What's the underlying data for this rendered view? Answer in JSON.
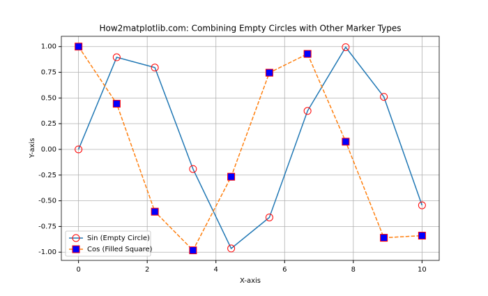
{
  "chart_data": {
    "type": "line",
    "title": "How2matplotlib.com: Combining Empty Circles with Other Marker Types",
    "xlabel": "X-axis",
    "ylabel": "Y-axis",
    "x": [
      0,
      1.111,
      2.222,
      3.333,
      4.444,
      5.556,
      6.667,
      7.778,
      8.889,
      10
    ],
    "series": [
      {
        "name": "Sin (Empty Circle)",
        "color": "#1f77b4",
        "linestyle": "solid",
        "marker": "circle",
        "marker_face": "none",
        "marker_edge": "red",
        "values": [
          0,
          0.896,
          0.796,
          -0.191,
          -0.964,
          -0.662,
          0.374,
          0.994,
          0.511,
          -0.544
        ]
      },
      {
        "name": "Cos (Filled Square)",
        "color": "#ff7f0e",
        "linestyle": "dashed",
        "marker": "square",
        "marker_face": "blue",
        "marker_edge": "red",
        "values": [
          1,
          0.444,
          -0.606,
          -0.982,
          -0.266,
          0.746,
          0.929,
          0.075,
          -0.86,
          -0.839
        ]
      }
    ],
    "xlim": [
      -0.5,
      10.5
    ],
    "xticks": [
      0,
      2,
      4,
      6,
      8,
      10
    ],
    "ylim": [
      -1.08,
      1.1
    ],
    "yticks": [
      {
        "value": -1,
        "label": "-1.00"
      },
      {
        "value": -0.75,
        "label": "-0.75"
      },
      {
        "value": -0.5,
        "label": "-0.50"
      },
      {
        "value": -0.25,
        "label": "-0.25"
      },
      {
        "value": 0,
        "label": "0.00"
      },
      {
        "value": 0.25,
        "label": "0.25"
      },
      {
        "value": 0.5,
        "label": "0.50"
      },
      {
        "value": 0.75,
        "label": "0.75"
      },
      {
        "value": 1,
        "label": "1.00"
      }
    ],
    "grid": true,
    "legend": "lower left"
  }
}
